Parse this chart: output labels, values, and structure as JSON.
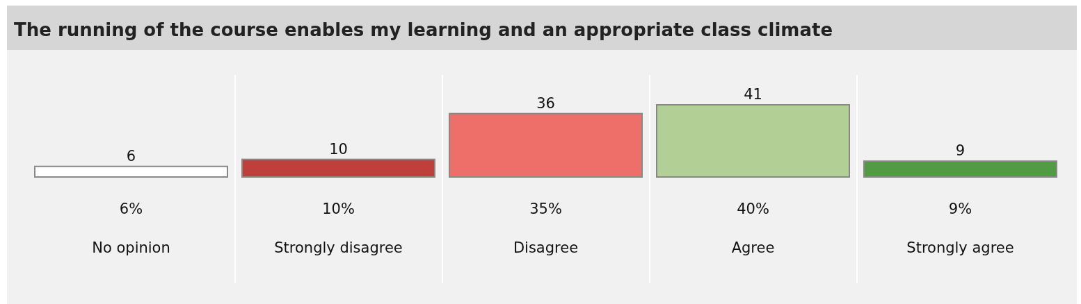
{
  "chart_data": {
    "type": "bar",
    "title": "The running of the course enables my learning and an appropriate class climate",
    "categories": [
      "No opinion",
      "Strongly disagree",
      "Disagree",
      "Agree",
      "Strongly agree"
    ],
    "values": [
      6,
      10,
      36,
      41,
      9
    ],
    "colors": [
      "#ffffff",
      "#bf3f3a",
      "#ee6e6a",
      "#b2d095",
      "#529a44"
    ],
    "data_labels": true,
    "annotations": [
      "6%",
      "10%",
      "35%",
      "40%",
      "9%"
    ]
  }
}
